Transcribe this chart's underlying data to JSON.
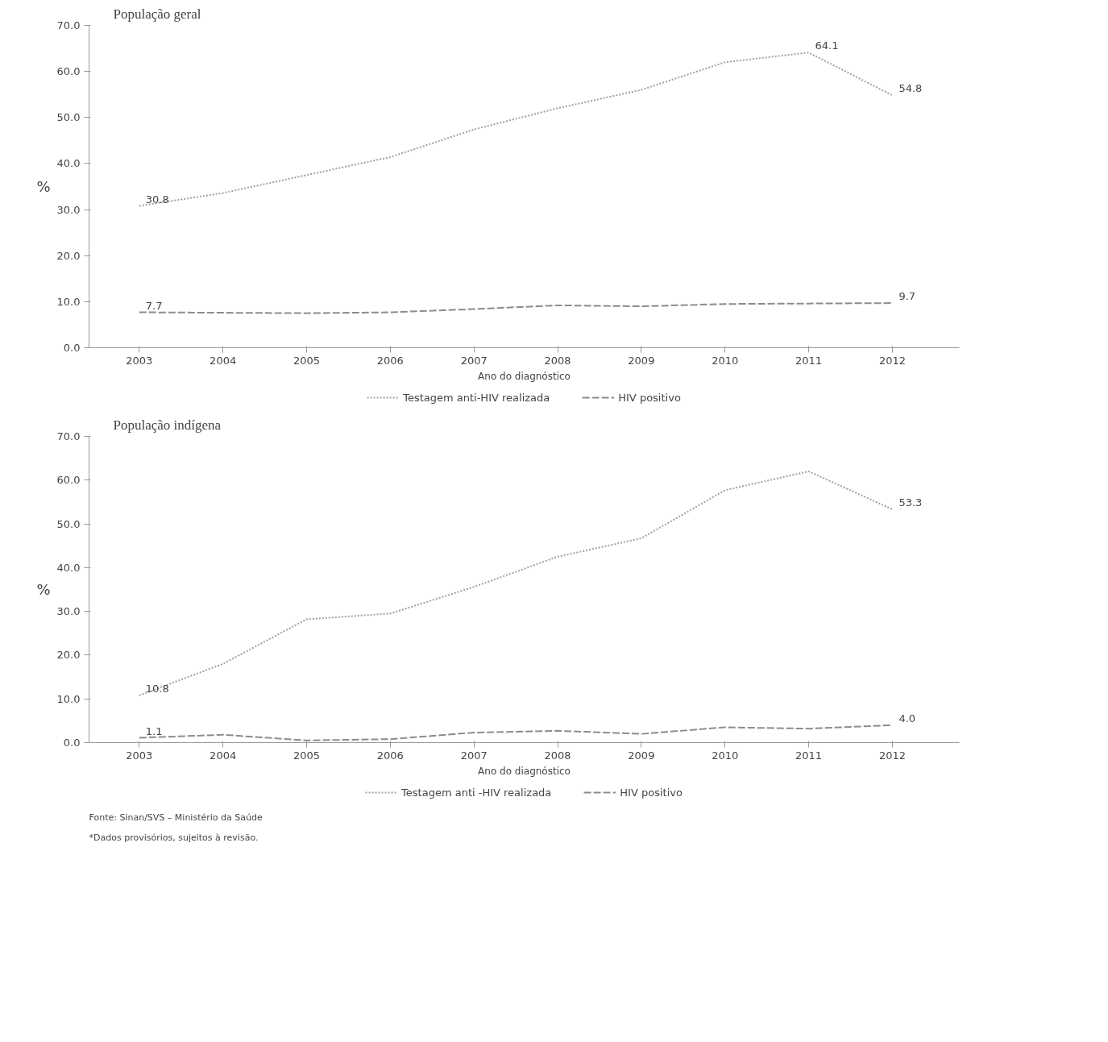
{
  "chart_data": [
    {
      "type": "line",
      "title": "População geral",
      "ylabel": "%",
      "xlabel": "Ano do diagnóstico",
      "categories": [
        "2003",
        "2004",
        "2005",
        "2006",
        "2007",
        "2008",
        "2009",
        "2010",
        "2011",
        "2012"
      ],
      "ylim": [
        0,
        70
      ],
      "yticks": [
        {
          "value": 0,
          "label": "0.0"
        },
        {
          "value": 10,
          "label": "10.0"
        },
        {
          "value": 20,
          "label": "20.0"
        },
        {
          "value": 30,
          "label": "30.0"
        },
        {
          "value": 40,
          "label": "40.0"
        },
        {
          "value": 50,
          "label": "50.0"
        },
        {
          "value": 60,
          "label": "60.0"
        },
        {
          "value": 70,
          "label": "70.0"
        }
      ],
      "grid": false,
      "legend": "bottom",
      "marker": "none",
      "series": [
        {
          "name": "Testagem anti-HIV realizada",
          "color": "#a0a0a0",
          "line_style": "dotted",
          "values": [
            30.8,
            33.6,
            37.5,
            41.4,
            47.4,
            52.0,
            56.0,
            62.0,
            64.1,
            54.8
          ],
          "value_labels": [
            "30.8",
            null,
            null,
            null,
            null,
            null,
            null,
            null,
            "64.1",
            "54.8"
          ]
        },
        {
          "name": "HIV positivo",
          "color": "#8c8c8c",
          "line_style": "dashed",
          "values": [
            7.7,
            7.6,
            7.5,
            7.7,
            8.4,
            9.2,
            9.0,
            9.5,
            9.6,
            9.7
          ],
          "value_labels": [
            "7.7",
            null,
            null,
            null,
            null,
            null,
            null,
            null,
            null,
            "9.7"
          ]
        }
      ]
    },
    {
      "type": "line",
      "title": "População indígena",
      "ylabel": "%",
      "xlabel": "Ano do diagnóstico",
      "categories": [
        "2003",
        "2004",
        "2005",
        "2006",
        "2007",
        "2008",
        "2009",
        "2010",
        "2011",
        "2012"
      ],
      "ylim": [
        0,
        70
      ],
      "yticks": [
        {
          "value": 0,
          "label": "0.0"
        },
        {
          "value": 10,
          "label": "10.0"
        },
        {
          "value": 20,
          "label": "20.0"
        },
        {
          "value": 30,
          "label": "30.0"
        },
        {
          "value": 40,
          "label": "40.0"
        },
        {
          "value": 50,
          "label": "50.0"
        },
        {
          "value": 60,
          "label": "60.0"
        },
        {
          "value": 70,
          "label": "70.0"
        }
      ],
      "grid": false,
      "legend": "bottom",
      "marker": "none",
      "annotations": [
        "Fonte: Sinan/SVS – Ministério da Saúde",
        "*Dados provisórios, sujeitos à revisão."
      ],
      "series": [
        {
          "name": "Testagem anti -HIV realizada",
          "color": "#a0a0a0",
          "line_style": "dotted",
          "values": [
            10.8,
            18.0,
            28.2,
            29.5,
            35.6,
            42.5,
            46.7,
            57.7,
            62.0,
            53.3
          ],
          "value_labels": [
            "10.8",
            null,
            null,
            null,
            null,
            null,
            null,
            null,
            null,
            "53.3"
          ]
        },
        {
          "name": "HIV positivo",
          "color": "#8c8c8c",
          "line_style": "dashed",
          "values": [
            1.1,
            1.8,
            0.5,
            0.8,
            2.3,
            2.7,
            2.0,
            3.5,
            3.2,
            4.0
          ],
          "value_labels": [
            "1.1",
            null,
            null,
            null,
            null,
            null,
            null,
            null,
            null,
            "4.0"
          ]
        }
      ]
    }
  ]
}
